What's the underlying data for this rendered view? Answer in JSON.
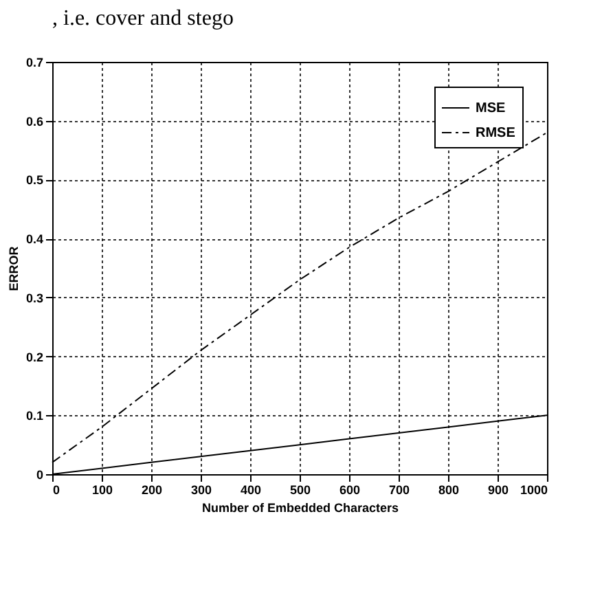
{
  "chart_data": {
    "type": "line",
    "annotations": [
      ", i.e. cover and stego"
    ],
    "xlabel": "Number of Embedded Characters",
    "ylabel": "ERROR",
    "x": [
      0,
      100,
      200,
      300,
      400,
      500,
      600,
      700,
      800,
      900,
      1000
    ],
    "series": [
      {
        "name": "MSE",
        "color": "#000000",
        "line_style": "solid",
        "values": [
          0,
          0.01,
          0.02,
          0.03,
          0.04,
          0.05,
          0.06,
          0.07,
          0.08,
          0.09,
          0.1
        ]
      },
      {
        "name": "RMSE",
        "color": "#000000",
        "line_style": "dashed",
        "values": [
          0.02,
          0.08,
          0.145,
          0.21,
          0.27,
          0.33,
          0.385,
          0.435,
          0.48,
          0.53,
          0.58
        ]
      }
    ],
    "xlim": [
      0,
      1000
    ],
    "xticks": [
      0,
      100,
      200,
      300,
      400,
      500,
      600,
      700,
      800,
      900,
      1000
    ],
    "ylim": [
      0,
      0.7
    ],
    "yticks": [
      0,
      0.1,
      0.2,
      0.3,
      0.4,
      0.5,
      0.6,
      0.7
    ],
    "grid": true,
    "legend": "top right",
    "marker": "none"
  }
}
